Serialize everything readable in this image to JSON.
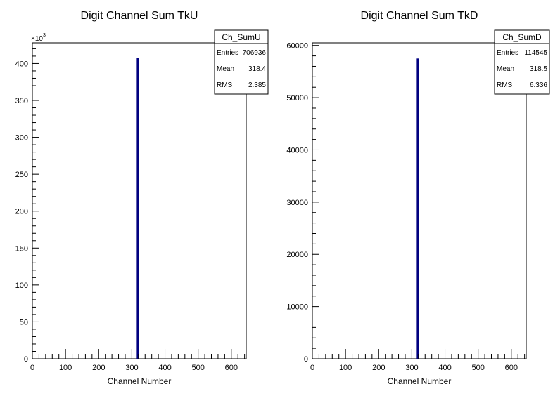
{
  "chart_data": [
    {
      "type": "bar",
      "title": "Digit Channel Sum TkU",
      "xlabel": "Channel Number",
      "ylabel": "",
      "xlim": [
        0,
        645
      ],
      "ylim": [
        0,
        428000
      ],
      "x_ticks": [
        "0",
        "100",
        "200",
        "300",
        "400",
        "500",
        "600"
      ],
      "y_ticks": [
        "0",
        "50",
        "100",
        "150",
        "200",
        "250",
        "300",
        "350",
        "400"
      ],
      "y_tick_values": [
        0,
        50000,
        100000,
        150000,
        200000,
        250000,
        300000,
        350000,
        400000
      ],
      "y_multiplier": "×10",
      "y_multiplier_exp": "3",
      "bars": [
        {
          "x": 318,
          "value": 408000
        }
      ],
      "bar_color": "#000080",
      "stats": {
        "name": "Ch_SumU",
        "rows": [
          {
            "label": "Entries",
            "value": "706936"
          },
          {
            "label": "Mean",
            "value": "318.4"
          },
          {
            "label": "RMS",
            "value": "2.385"
          }
        ]
      }
    },
    {
      "type": "bar",
      "title": "Digit Channel Sum TkD",
      "xlabel": "Channel Number",
      "ylabel": "",
      "xlim": [
        0,
        645
      ],
      "ylim": [
        0,
        60500
      ],
      "x_ticks": [
        "0",
        "100",
        "200",
        "300",
        "400",
        "500",
        "600"
      ],
      "y_ticks": [
        "0",
        "10000",
        "20000",
        "30000",
        "40000",
        "50000",
        "60000"
      ],
      "y_tick_values": [
        0,
        10000,
        20000,
        30000,
        40000,
        50000,
        60000
      ],
      "y_multiplier": "",
      "y_multiplier_exp": "",
      "bars": [
        {
          "x": 318,
          "value": 57500
        }
      ],
      "bar_color": "#000080",
      "stats": {
        "name": "Ch_SumD",
        "rows": [
          {
            "label": "Entries",
            "value": "114545"
          },
          {
            "label": "Mean",
            "value": "318.5"
          },
          {
            "label": "RMS",
            "value": "6.336"
          }
        ]
      }
    }
  ]
}
